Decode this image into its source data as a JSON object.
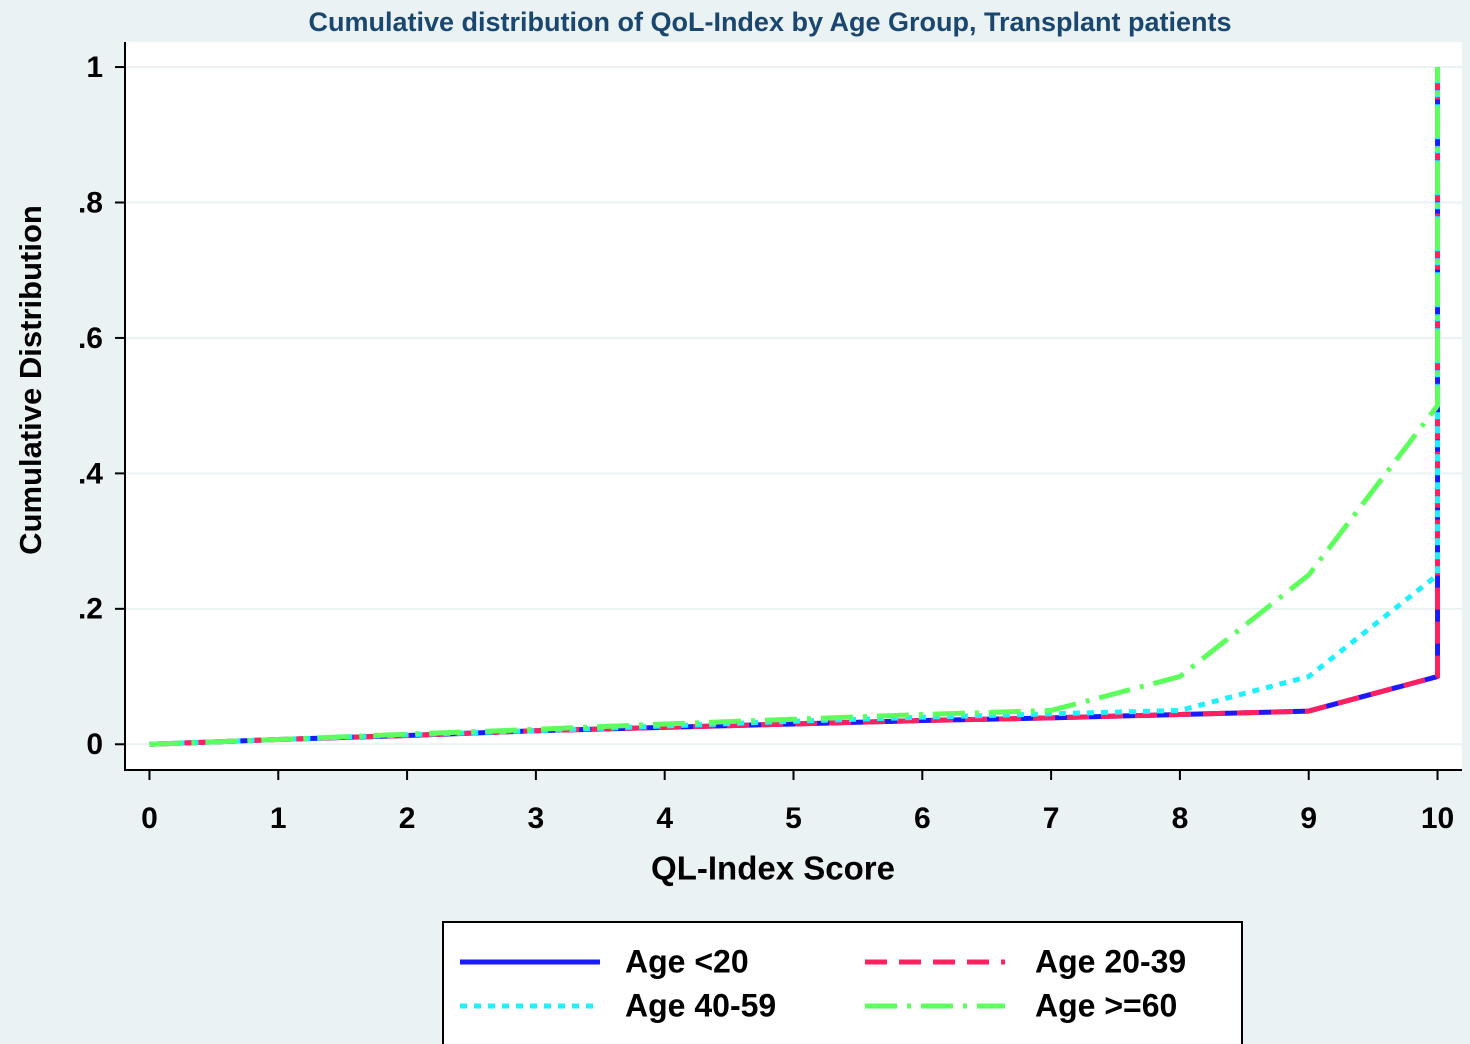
{
  "chart_data": {
    "type": "line",
    "title": "Cumulative distribution of QoL-Index by Age Group, Transplant patients",
    "xlabel": "QL-Index Score",
    "ylabel": "Cumulative Distribution",
    "x": [
      0,
      1,
      2,
      3,
      4,
      5,
      6,
      7,
      8,
      9,
      10,
      10
    ],
    "series": [
      {
        "name": "Age <20",
        "color": "#1a1aff",
        "dash": "solid",
        "values": [
          0,
          0.007,
          0.013,
          0.02,
          0.025,
          0.03,
          0.035,
          0.039,
          0.044,
          0.049,
          0.1,
          1
        ]
      },
      {
        "name": "Age 20-39",
        "color": "#ff2060",
        "dash": "dashed",
        "values": [
          0,
          0.007,
          0.013,
          0.02,
          0.025,
          0.03,
          0.035,
          0.039,
          0.044,
          0.049,
          0.1,
          1
        ]
      },
      {
        "name": "Age 40-59",
        "color": "#1ff0ff",
        "dash": "dotted",
        "values": [
          0,
          0.007,
          0.014,
          0.02,
          0.027,
          0.034,
          0.04,
          0.045,
          0.05,
          0.1,
          0.25,
          1
        ]
      },
      {
        "name": "Age >=60",
        "color": "#5cff5c",
        "dash": "dashdot",
        "values": [
          0,
          0.007,
          0.015,
          0.022,
          0.03,
          0.037,
          0.044,
          0.05,
          0.1,
          0.25,
          0.5,
          1
        ]
      }
    ],
    "xlim": [
      -0.19,
      10.19
    ],
    "ylim": [
      -0.038,
      1.037
    ],
    "xticks": [
      0,
      1,
      2,
      3,
      4,
      5,
      6,
      7,
      8,
      9,
      10
    ],
    "yticks": [
      0,
      {
        "value": 0.2,
        "label": ".2"
      },
      {
        "value": 0.4,
        "label": ".4"
      },
      {
        "value": 0.6,
        "label": ".6"
      },
      {
        "value": 0.8,
        "label": ".8"
      },
      1
    ],
    "grid": true,
    "legend": "bottom"
  }
}
